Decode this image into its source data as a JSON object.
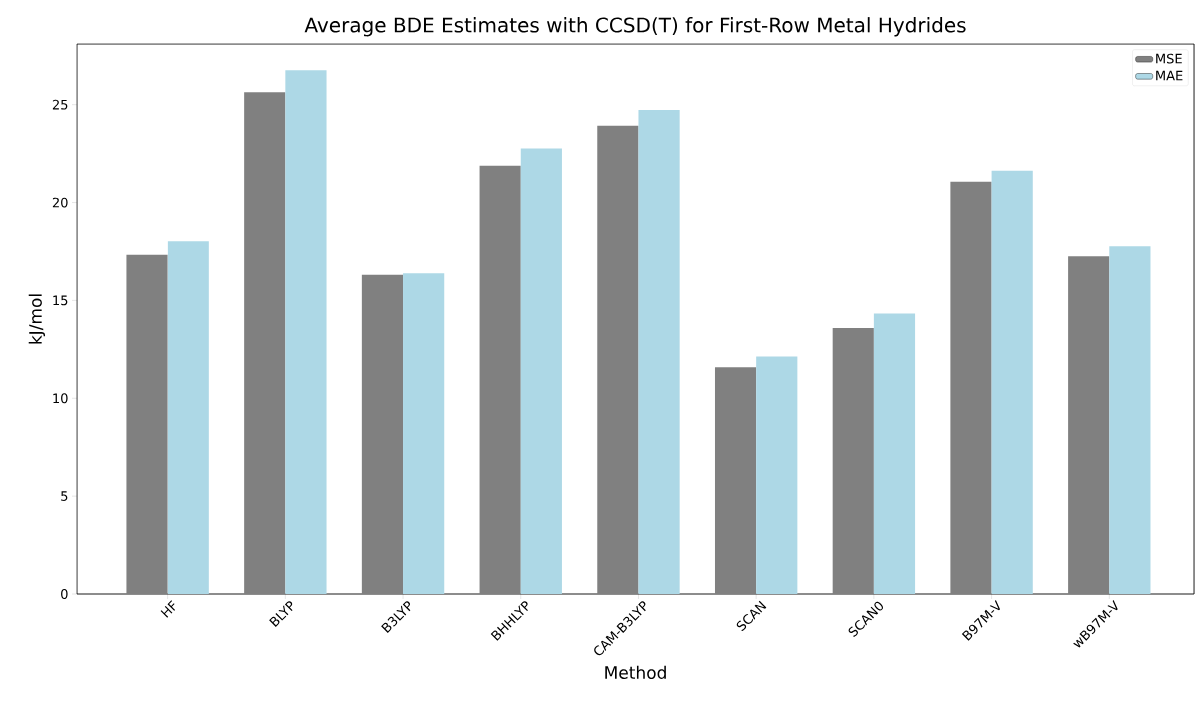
{
  "chart_data": {
    "type": "bar",
    "title": "Average BDE Estimates with CCSD(T) for First-Row Metal Hydrides",
    "xlabel": "Method",
    "ylabel": "kJ/mol",
    "categories": [
      "HF",
      "BLYP",
      "B3LYP",
      "BHHLYP",
      "CAM-B3LYP",
      "SCAN",
      "SCAN0",
      "B97M-V",
      "wB97M-V"
    ],
    "series": [
      {
        "name": "MSE",
        "color": "#808080",
        "values": [
          17.33,
          25.64,
          16.31,
          21.88,
          23.92,
          11.59,
          13.59,
          21.06,
          17.25
        ]
      },
      {
        "name": "MAE",
        "color": "#add8e6",
        "values": [
          18.02,
          26.76,
          16.39,
          22.76,
          24.73,
          12.14,
          14.33,
          21.62,
          17.77
        ]
      }
    ],
    "ylim": [
      0,
      28.1
    ],
    "yticks": [
      0,
      5,
      10,
      15,
      20,
      25
    ],
    "legend": "top right"
  }
}
